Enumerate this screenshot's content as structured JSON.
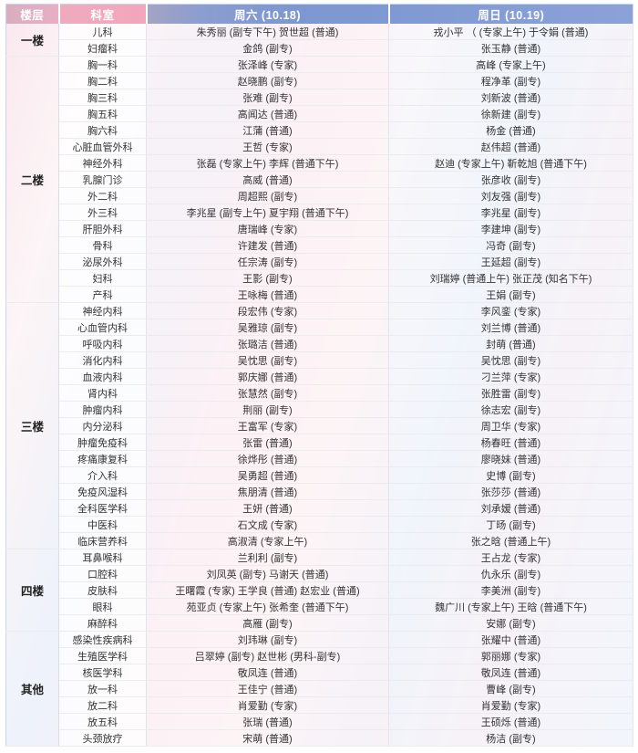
{
  "colors": {
    "header_pink": "#f0a9bd",
    "header_blue": "#7e98d2",
    "floor_pink_bg": "#f8e7ee",
    "floor_blue_bg": "#e9effa"
  },
  "table": {
    "headers": [
      {
        "label": "楼层"
      },
      {
        "label": "科室"
      },
      {
        "label": "周六 (10.18)"
      },
      {
        "label": "周日 (10.19)"
      }
    ],
    "groups": [
      {
        "floor": "一楼",
        "rows": [
          {
            "dept": "儿科",
            "sat": "朱秀丽 (副专下午) 贺世超 (普通)",
            "sun": "戎小平 （ (专家上午) 于令娟 (普通)"
          },
          {
            "dept": "妇瘤科",
            "sat": "金鸽 (副专)",
            "sun": "张玉静 (普通)"
          }
        ]
      },
      {
        "floor": "二楼",
        "rows": [
          {
            "dept": "胸一科",
            "sat": "张泽峰 (专家)",
            "sun": "高峰 (专家上午)"
          },
          {
            "dept": "胸二科",
            "sat": "赵晓鹏 (副专)",
            "sun": "程净革 (副专)"
          },
          {
            "dept": "胸三科",
            "sat": "张难 (副专)",
            "sun": "刘新波 (普通)"
          },
          {
            "dept": "胸五科",
            "sat": "高闻达 (普通)",
            "sun": "徐新建 (副专)"
          },
          {
            "dept": "胸六科",
            "sat": "江蒲 (普通)",
            "sun": "杨金 (普通)"
          },
          {
            "dept": "心脏血管外科",
            "sat": "王哲 (专家)",
            "sun": "赵伟超 (普通)"
          },
          {
            "dept": "神经外科",
            "sat": "张磊 (专家上午) 李辉 (普通下午)",
            "sun": "赵迪 (专家上午) 靳乾旭 (普通下午)"
          },
          {
            "dept": "乳腺门诊",
            "sat": "高威 (普通)",
            "sun": "张彦收 (副专)"
          },
          {
            "dept": "外二科",
            "sat": "周超熙 (副专)",
            "sun": "刘友强 (副专)"
          },
          {
            "dept": "外三科",
            "sat": "李兆星 (副专上午) 夏宇翔 (普通下午)",
            "sun": "李兆星 (副专)"
          },
          {
            "dept": "肝胆外科",
            "sat": "唐瑞峰 (专家)",
            "sun": "李建坤 (副专)"
          },
          {
            "dept": "骨科",
            "sat": "许建发 (普通)",
            "sun": "冯奇 (副专)"
          },
          {
            "dept": "泌尿外科",
            "sat": "任宗涛 (副专)",
            "sun": "王延超 (副专)"
          },
          {
            "dept": "妇科",
            "sat": "王影 (副专)",
            "sun": "刘瑞婷 (普通上午) 张正茂 (知名下午)"
          },
          {
            "dept": "产科",
            "sat": "王咏梅 (普通)",
            "sun": "王娟 (副专)"
          }
        ]
      },
      {
        "floor": "三楼",
        "rows": [
          {
            "dept": "神经内科",
            "sat": "段宏伟 (专家)",
            "sun": "李风銮 (专家)"
          },
          {
            "dept": "心血管内科",
            "sat": "吴雅琼 (副专)",
            "sun": "刘兰博 (普通)"
          },
          {
            "dept": "呼吸内科",
            "sat": "张璐洁 (普通)",
            "sun": "封萌 (普通)"
          },
          {
            "dept": "消化内科",
            "sat": "吴忱思 (副专)",
            "sun": "吴忱思 (副专)"
          },
          {
            "dept": "血液内科",
            "sat": "郭庆娜 (普通)",
            "sun": "刁兰萍 (专家)"
          },
          {
            "dept": "肾内科",
            "sat": "张慧然 (副专)",
            "sun": "张胜雷 (副专)"
          },
          {
            "dept": "肿瘤内科",
            "sat": "荆丽 (副专)",
            "sun": "徐志宏 (副专)"
          },
          {
            "dept": "内分泌科",
            "sat": "王富军 (专家)",
            "sun": "周卫华 (专家)"
          },
          {
            "dept": "肿瘤免疫科",
            "sat": "张雷 (普通)",
            "sun": "杨春旺 (普通)"
          },
          {
            "dept": "疼痛康复科",
            "sat": "徐烨彤 (普通)",
            "sun": "廖晓妹 (普通)"
          },
          {
            "dept": "介入科",
            "sat": "吴勇超 (普通)",
            "sun": "史博 (副专)"
          },
          {
            "dept": "免疫风湿科",
            "sat": "焦朋清 (普通)",
            "sun": "张莎莎 (普通)"
          },
          {
            "dept": "全科医学科",
            "sat": "王妍 (普通)",
            "sun": "刘承嫒 (普通)"
          },
          {
            "dept": "中医科",
            "sat": "石文成 (专家)",
            "sun": "丁旸 (副专)"
          },
          {
            "dept": "临床营养科",
            "sat": "高淑清 (专家上午)",
            "sun": "张之晗 (普通上午)"
          }
        ]
      },
      {
        "floor": "四楼",
        "rows": [
          {
            "dept": "耳鼻喉科",
            "sat": "兰利利 (副专)",
            "sun": "王占龙 (专家)"
          },
          {
            "dept": "口腔科",
            "sat": "刘凤英 (副专) 马谢天 (普通)",
            "sun": "仇永乐 (副专)"
          },
          {
            "dept": "皮肤科",
            "sat": "王曙霞 (专家) 王学良 (普通) 赵宏业 (普通)",
            "sun": "李美洲 (副专)"
          },
          {
            "dept": "眼科",
            "sat": "苑亚贞 (专家上午) 张希奎 (普通下午)",
            "sun": "魏广川 (专家上午) 王晗 (普通下午)"
          },
          {
            "dept": "麻醉科",
            "sat": "高雁 (副专)",
            "sun": "安娜 (副专)"
          }
        ]
      },
      {
        "floor": "其他",
        "rows": [
          {
            "dept": "感染性疾病科",
            "sat": "刘玮琳 (副专)",
            "sun": "张耀中 (普通)"
          },
          {
            "dept": "生殖医学科",
            "sat": "吕翠婷 (副专) 赵世彬 (男科-副专)",
            "sun": "郭丽娜 (专家)"
          },
          {
            "dept": "核医学科",
            "sat": "敬凤连 (普通)",
            "sun": "敬凤连 (普通)"
          },
          {
            "dept": "放一科",
            "sat": "王佳宁 (普通)",
            "sun": "曹峰 (副专)"
          },
          {
            "dept": "放二科",
            "sat": "肖爱勤 (专家)",
            "sun": "肖爱勤 (专家)"
          },
          {
            "dept": "放五科",
            "sat": "张瑞 (普通)",
            "sun": "王硕烁 (普通)"
          },
          {
            "dept": "头颈放疗",
            "sat": "宋萌 (普通)",
            "sun": "杨洁 (副专)"
          }
        ]
      }
    ]
  }
}
